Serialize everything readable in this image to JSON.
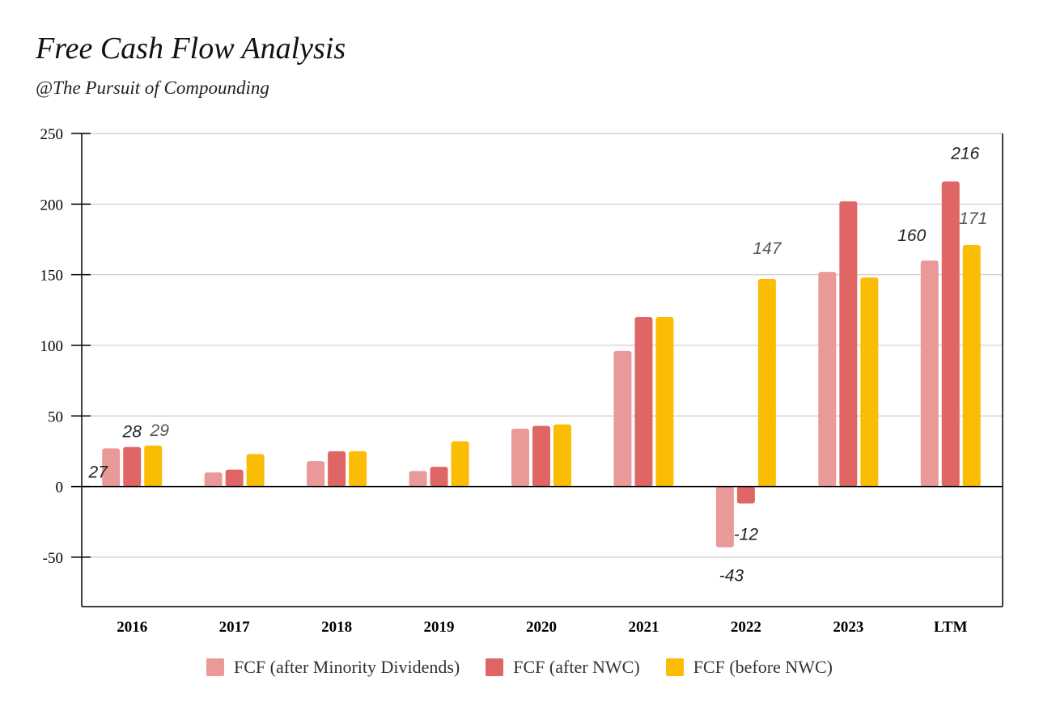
{
  "header": {
    "title": "Free Cash Flow Analysis",
    "subtitle": "@The Pursuit of Compounding"
  },
  "chart_data": {
    "type": "bar",
    "title": "Free Cash Flow Analysis",
    "subtitle": "@The Pursuit of Compounding",
    "xlabel": "",
    "ylabel": "",
    "ylim": [
      -85,
      250
    ],
    "yticks": [
      -50,
      0,
      50,
      100,
      150,
      200,
      250
    ],
    "grid": true,
    "legend_position": "bottom",
    "categories": [
      "2016",
      "2017",
      "2018",
      "2019",
      "2020",
      "2021",
      "2022",
      "2023",
      "LTM"
    ],
    "series": [
      {
        "name": "FCF (after Minority Dividends)",
        "color": "#ea9999",
        "values": [
          27,
          10,
          18,
          11,
          41,
          96,
          -43,
          152,
          160
        ]
      },
      {
        "name": "FCF (after NWC)",
        "color": "#e06666",
        "values": [
          28,
          12,
          25,
          14,
          43,
          120,
          -12,
          202,
          216
        ]
      },
      {
        "name": "FCF (before NWC)",
        "color": "#fbbc04",
        "values": [
          29,
          23,
          25,
          32,
          44,
          120,
          147,
          148,
          171
        ]
      }
    ],
    "data_labels": [
      {
        "series": 0,
        "index": 0,
        "text": "27"
      },
      {
        "series": 1,
        "index": 0,
        "text": "28"
      },
      {
        "series": 2,
        "index": 0,
        "text": "29"
      },
      {
        "series": 0,
        "index": 6,
        "text": "-43"
      },
      {
        "series": 1,
        "index": 6,
        "text": "-12"
      },
      {
        "series": 2,
        "index": 6,
        "text": "147"
      },
      {
        "series": 0,
        "index": 8,
        "text": "160"
      },
      {
        "series": 1,
        "index": 8,
        "text": "216"
      },
      {
        "series": 2,
        "index": 8,
        "text": "171"
      }
    ]
  }
}
